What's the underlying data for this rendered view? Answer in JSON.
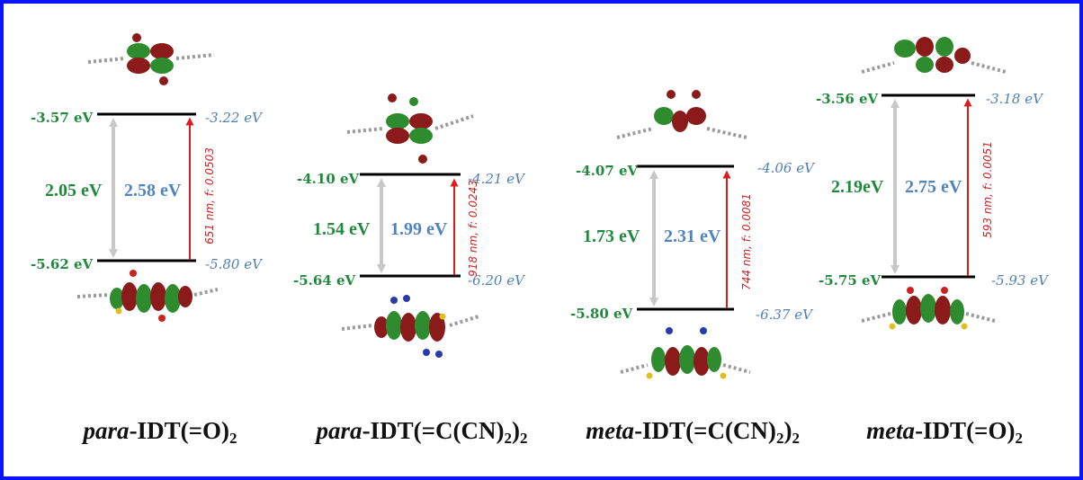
{
  "colors": {
    "frame": "#0a14ff",
    "level_line": "#000000",
    "exp_text": "#1f8a3c",
    "calc_text": "#4f7fb3",
    "gap_arrow": "#c8c8c8",
    "transition_arrow": "#e01b1b",
    "orbital_phase_a": "#2e8b2e",
    "orbital_phase_b": "#8b1a1a"
  },
  "panels": [
    {
      "id": "p1",
      "name_italic": "para",
      "name_rest": "-IDT(=O)",
      "name_sub": "2",
      "name_tail": "",
      "lumo_exp": "-3.57 eV",
      "lumo_calc": "-3.22 eV",
      "homo_exp": "-5.62 eV",
      "homo_calc": "-5.80 eV",
      "gap_exp": "2.05 eV",
      "gap_calc": "2.58 eV",
      "transition": "651 nm, f: 0.0503"
    },
    {
      "id": "p2",
      "name_italic": "para",
      "name_rest": "-IDT(=C(CN)",
      "name_sub": "2",
      "name_tail": ")",
      "name_sub2": "2",
      "lumo_exp": "-4.10 eV",
      "lumo_calc": "-4.21 eV",
      "homo_exp": "-5.64 eV",
      "homo_calc": "-6.20 eV",
      "gap_exp": "1.54 eV",
      "gap_calc": "1.99 eV",
      "transition": "918 nm, f: 0.0243"
    },
    {
      "id": "p3",
      "name_italic": "meta",
      "name_rest": "-IDT(=C(CN)",
      "name_sub": "2",
      "name_tail": ")",
      "name_sub2": "2",
      "lumo_exp": "-4.07 eV",
      "lumo_calc": "-4.06 eV",
      "homo_exp": "-5.80 eV",
      "homo_calc": "-6.37 eV",
      "gap_exp": "1.73 eV",
      "gap_calc": "2.31 eV",
      "transition": "744 nm, f: 0.0081"
    },
    {
      "id": "p4",
      "name_italic": "meta",
      "name_rest": "-IDT(=O)",
      "name_sub": "2",
      "name_tail": "",
      "lumo_exp": "-3.56 eV",
      "lumo_calc": "-3.18 eV",
      "homo_exp": "-5.75 eV",
      "homo_calc": "-5.93 eV",
      "gap_exp": "2.19eV",
      "gap_calc": "2.75 eV",
      "transition": "593 nm, f: 0.0051"
    }
  ]
}
